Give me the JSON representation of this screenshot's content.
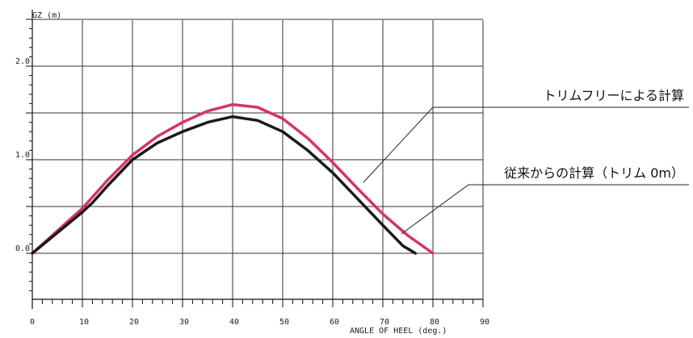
{
  "chart_data": {
    "type": "line",
    "ylabel": "GZ  (m)",
    "xlabel": "ANGLE OF HEEL  (deg.)",
    "xlim": [
      0,
      90
    ],
    "ylim": [
      -1.0,
      2.5
    ],
    "x_ticks": [
      0,
      10,
      20,
      30,
      40,
      50,
      60,
      70,
      80,
      90
    ],
    "x_tick_labels": [
      "0",
      "10",
      "20",
      "30",
      "40",
      "50",
      "60",
      "70",
      "80",
      "90"
    ],
    "y_ticks": [
      0.0,
      1.0,
      2.0
    ],
    "y_tick_labels": [
      "0.0",
      "1.0",
      "2.0"
    ],
    "grid": true,
    "series": [
      {
        "name": "トリムフリーによる計算",
        "color": "#d6336c",
        "x": [
          0,
          5,
          10,
          15,
          20,
          25,
          30,
          35,
          40,
          45,
          50,
          55,
          60,
          65,
          70,
          75,
          80
        ],
        "y": [
          0.0,
          0.24,
          0.48,
          0.78,
          1.05,
          1.25,
          1.4,
          1.52,
          1.59,
          1.56,
          1.44,
          1.23,
          0.97,
          0.69,
          0.42,
          0.19,
          0.0
        ]
      },
      {
        "name": "従来からの計算（トリム 0m）",
        "color": "#1a1a1a",
        "x": [
          0,
          5,
          10,
          12,
          15,
          20,
          25,
          30,
          35,
          40,
          45,
          50,
          55,
          60,
          65,
          70,
          74,
          76.5
        ],
        "y": [
          0.0,
          0.22,
          0.44,
          0.54,
          0.72,
          1.0,
          1.18,
          1.3,
          1.4,
          1.46,
          1.42,
          1.3,
          1.1,
          0.86,
          0.58,
          0.3,
          0.08,
          0.0
        ]
      }
    ]
  }
}
